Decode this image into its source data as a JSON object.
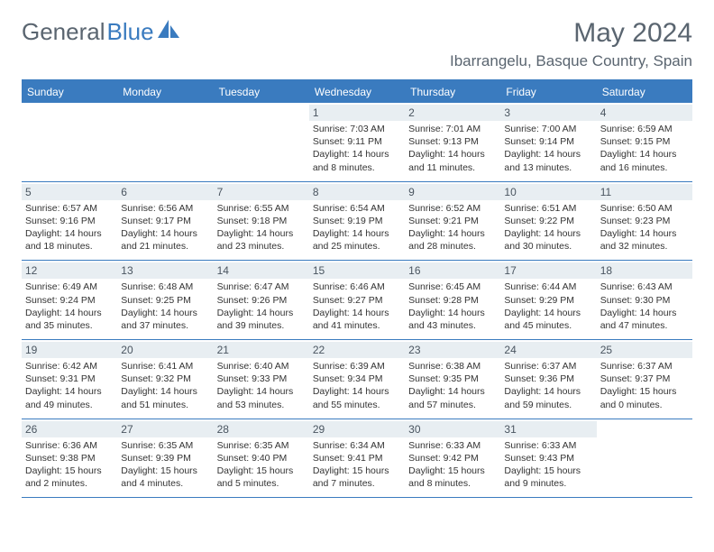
{
  "brand": {
    "part1": "General",
    "part2": "Blue"
  },
  "title": "May 2024",
  "location": "Ibarrangelu, Basque Country, Spain",
  "colors": {
    "header_bar": "#3a7bbf",
    "daynum_bg": "#e8eef2",
    "text_gray": "#5a6570",
    "body_text": "#333333",
    "white": "#ffffff"
  },
  "weekdays": [
    "Sunday",
    "Monday",
    "Tuesday",
    "Wednesday",
    "Thursday",
    "Friday",
    "Saturday"
  ],
  "weeks": [
    [
      {
        "empty": true
      },
      {
        "empty": true
      },
      {
        "empty": true
      },
      {
        "n": "1",
        "sr": "7:03 AM",
        "ss": "9:11 PM",
        "dl": "14 hours and 8 minutes."
      },
      {
        "n": "2",
        "sr": "7:01 AM",
        "ss": "9:13 PM",
        "dl": "14 hours and 11 minutes."
      },
      {
        "n": "3",
        "sr": "7:00 AM",
        "ss": "9:14 PM",
        "dl": "14 hours and 13 minutes."
      },
      {
        "n": "4",
        "sr": "6:59 AM",
        "ss": "9:15 PM",
        "dl": "14 hours and 16 minutes."
      }
    ],
    [
      {
        "n": "5",
        "sr": "6:57 AM",
        "ss": "9:16 PM",
        "dl": "14 hours and 18 minutes."
      },
      {
        "n": "6",
        "sr": "6:56 AM",
        "ss": "9:17 PM",
        "dl": "14 hours and 21 minutes."
      },
      {
        "n": "7",
        "sr": "6:55 AM",
        "ss": "9:18 PM",
        "dl": "14 hours and 23 minutes."
      },
      {
        "n": "8",
        "sr": "6:54 AM",
        "ss": "9:19 PM",
        "dl": "14 hours and 25 minutes."
      },
      {
        "n": "9",
        "sr": "6:52 AM",
        "ss": "9:21 PM",
        "dl": "14 hours and 28 minutes."
      },
      {
        "n": "10",
        "sr": "6:51 AM",
        "ss": "9:22 PM",
        "dl": "14 hours and 30 minutes."
      },
      {
        "n": "11",
        "sr": "6:50 AM",
        "ss": "9:23 PM",
        "dl": "14 hours and 32 minutes."
      }
    ],
    [
      {
        "n": "12",
        "sr": "6:49 AM",
        "ss": "9:24 PM",
        "dl": "14 hours and 35 minutes."
      },
      {
        "n": "13",
        "sr": "6:48 AM",
        "ss": "9:25 PM",
        "dl": "14 hours and 37 minutes."
      },
      {
        "n": "14",
        "sr": "6:47 AM",
        "ss": "9:26 PM",
        "dl": "14 hours and 39 minutes."
      },
      {
        "n": "15",
        "sr": "6:46 AM",
        "ss": "9:27 PM",
        "dl": "14 hours and 41 minutes."
      },
      {
        "n": "16",
        "sr": "6:45 AM",
        "ss": "9:28 PM",
        "dl": "14 hours and 43 minutes."
      },
      {
        "n": "17",
        "sr": "6:44 AM",
        "ss": "9:29 PM",
        "dl": "14 hours and 45 minutes."
      },
      {
        "n": "18",
        "sr": "6:43 AM",
        "ss": "9:30 PM",
        "dl": "14 hours and 47 minutes."
      }
    ],
    [
      {
        "n": "19",
        "sr": "6:42 AM",
        "ss": "9:31 PM",
        "dl": "14 hours and 49 minutes."
      },
      {
        "n": "20",
        "sr": "6:41 AM",
        "ss": "9:32 PM",
        "dl": "14 hours and 51 minutes."
      },
      {
        "n": "21",
        "sr": "6:40 AM",
        "ss": "9:33 PM",
        "dl": "14 hours and 53 minutes."
      },
      {
        "n": "22",
        "sr": "6:39 AM",
        "ss": "9:34 PM",
        "dl": "14 hours and 55 minutes."
      },
      {
        "n": "23",
        "sr": "6:38 AM",
        "ss": "9:35 PM",
        "dl": "14 hours and 57 minutes."
      },
      {
        "n": "24",
        "sr": "6:37 AM",
        "ss": "9:36 PM",
        "dl": "14 hours and 59 minutes."
      },
      {
        "n": "25",
        "sr": "6:37 AM",
        "ss": "9:37 PM",
        "dl": "15 hours and 0 minutes."
      }
    ],
    [
      {
        "n": "26",
        "sr": "6:36 AM",
        "ss": "9:38 PM",
        "dl": "15 hours and 2 minutes."
      },
      {
        "n": "27",
        "sr": "6:35 AM",
        "ss": "9:39 PM",
        "dl": "15 hours and 4 minutes."
      },
      {
        "n": "28",
        "sr": "6:35 AM",
        "ss": "9:40 PM",
        "dl": "15 hours and 5 minutes."
      },
      {
        "n": "29",
        "sr": "6:34 AM",
        "ss": "9:41 PM",
        "dl": "15 hours and 7 minutes."
      },
      {
        "n": "30",
        "sr": "6:33 AM",
        "ss": "9:42 PM",
        "dl": "15 hours and 8 minutes."
      },
      {
        "n": "31",
        "sr": "6:33 AM",
        "ss": "9:43 PM",
        "dl": "15 hours and 9 minutes."
      },
      {
        "empty": true
      }
    ]
  ],
  "labels": {
    "sunrise": "Sunrise:",
    "sunset": "Sunset:",
    "daylight": "Daylight:"
  }
}
